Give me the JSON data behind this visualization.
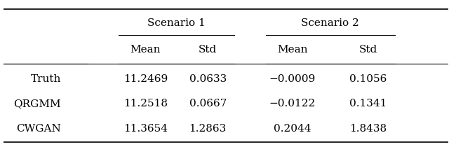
{
  "title": "",
  "rows": [
    "Truth",
    "QRGMM",
    "CWGAN"
  ],
  "scenario1_mean": [
    "11.2469",
    "11.2518",
    "11.3654"
  ],
  "scenario1_std": [
    "0.0633",
    "0.0667",
    "1.2863"
  ],
  "scenario2_mean": [
    "−0.0009",
    "−0.0122",
    "0.2044"
  ],
  "scenario2_std": [
    "0.1056",
    "0.1341",
    "1.8438"
  ],
  "col_headers": [
    "Mean",
    "Std",
    "Mean",
    "Std"
  ],
  "group_headers": [
    "Scenario 1",
    "Scenario 2"
  ],
  "bg_color": "#ffffff",
  "text_color": "#000000",
  "font_size": 11
}
